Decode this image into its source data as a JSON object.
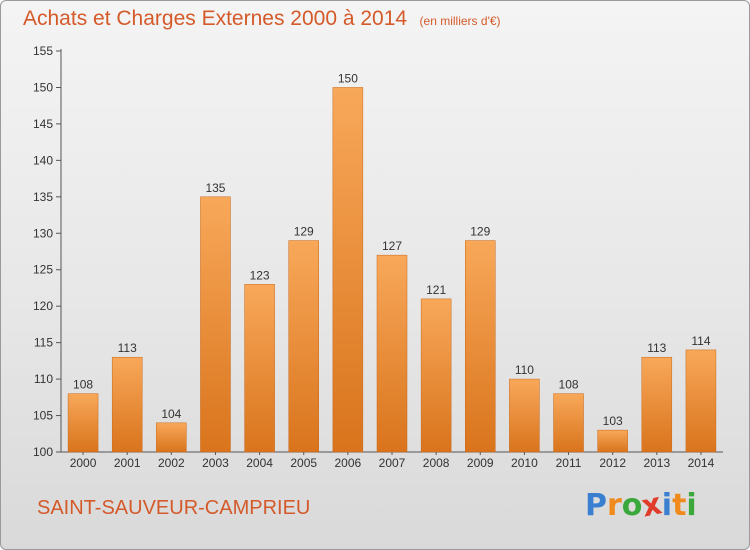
{
  "header": {
    "title": "Achats et Charges Externes 2000 à 2014",
    "subtitle": "(en milliers d'€)"
  },
  "footer": {
    "commune": "SAINT-SAUVEUR-CAMPRIEU",
    "logo_text": "Proxiti",
    "logo_letters": [
      {
        "ch": "P",
        "color": "#3b7fd0"
      },
      {
        "ch": "r",
        "color": "#f08a1c"
      },
      {
        "ch": "o",
        "color": "#3aa83a"
      },
      {
        "ch": "x",
        "color": "#e03c2c"
      },
      {
        "ch": "i",
        "color": "#3b7fd0"
      },
      {
        "ch": "t",
        "color": "#f08a1c"
      },
      {
        "ch": "i",
        "color": "#3aa83a"
      }
    ]
  },
  "colors": {
    "bar_light": "#f8a85a",
    "bar_dark": "#d9741c",
    "text": "#333333",
    "title": "#d45a2a"
  },
  "chart_data": {
    "type": "bar",
    "title": "Achats et Charges Externes 2000 à 2014",
    "subtitle": "(en milliers d'€)",
    "categories": [
      "2000",
      "2001",
      "2002",
      "2003",
      "2004",
      "2005",
      "2006",
      "2007",
      "2008",
      "2009",
      "2010",
      "2011",
      "2012",
      "2013",
      "2014"
    ],
    "values": [
      108,
      113,
      104,
      135,
      123,
      129,
      150,
      127,
      121,
      129,
      110,
      108,
      103,
      113,
      114
    ],
    "ylim": [
      100,
      155
    ],
    "yticks": [
      100,
      105,
      110,
      115,
      120,
      125,
      130,
      135,
      140,
      145,
      150,
      155
    ],
    "grid": false,
    "data_labels": true
  }
}
